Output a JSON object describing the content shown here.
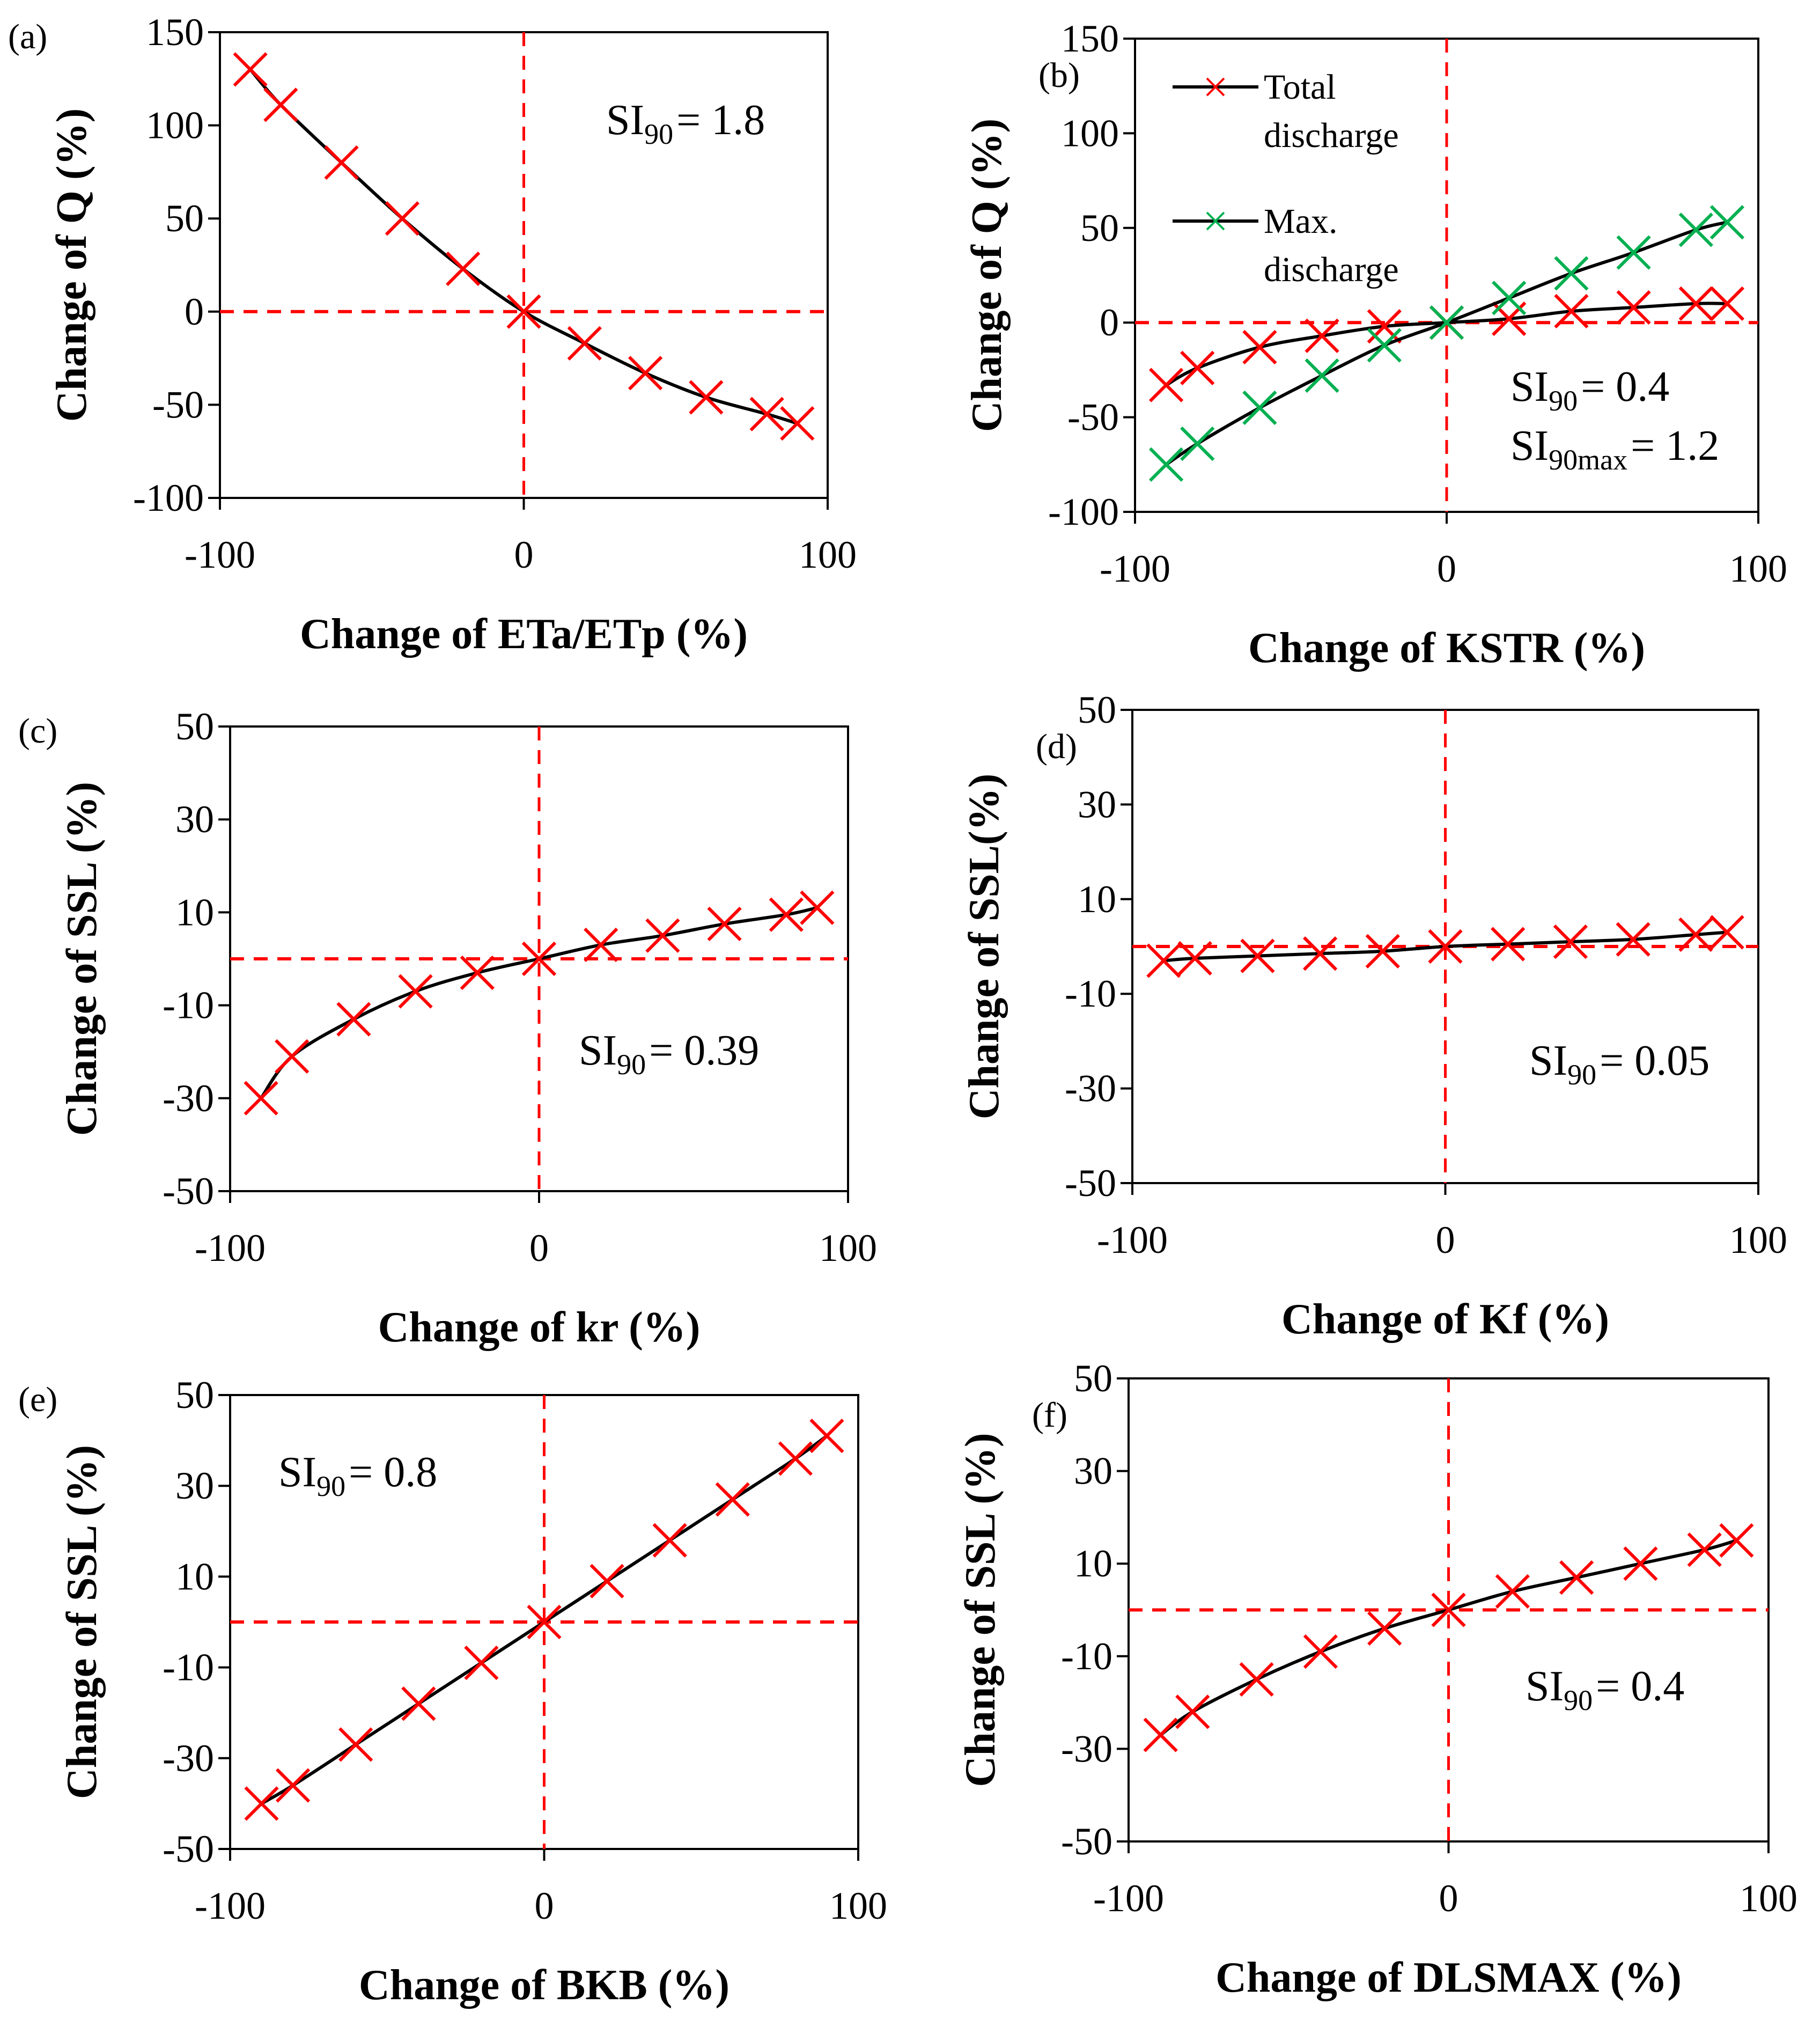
{
  "chart_data": [
    {
      "type": "line",
      "panel_label": "(a)",
      "xlabel": "Change of ETa/ETp (%)",
      "ylabel": "Change of Q (%)",
      "xlim": [
        -100,
        100
      ],
      "ylim": [
        -100,
        150
      ],
      "xticks": [
        -100,
        0,
        100
      ],
      "yticks": [
        -100,
        -50,
        0,
        50,
        100,
        150
      ],
      "x": [
        -90,
        -80,
        -60,
        -40,
        -20,
        0,
        20,
        40,
        60,
        80,
        90
      ],
      "series": [
        {
          "name": "Q",
          "color": "#ff0000",
          "values": [
            130,
            111,
            80,
            50,
            23,
            0,
            -17,
            -33,
            -46,
            -55,
            -60
          ]
        }
      ],
      "annotation": {
        "prefix": "SI",
        "sub": "90",
        "value": "= 1.8",
        "pos": "top-right"
      },
      "legend": null
    },
    {
      "type": "line",
      "panel_label": "(b)",
      "xlabel": "Change of KSTR (%)",
      "ylabel": "Change of Q (%)",
      "xlim": [
        -100,
        100
      ],
      "ylim": [
        -100,
        150
      ],
      "xticks": [
        -100,
        0,
        100
      ],
      "yticks": [
        -100,
        -50,
        0,
        50,
        100,
        150
      ],
      "x": [
        -90,
        -80,
        -60,
        -40,
        -20,
        0,
        20,
        40,
        60,
        80,
        90
      ],
      "series": [
        {
          "name": "Total discharge",
          "label_lines": [
            "Total",
            "discharge"
          ],
          "color": "#ff0000",
          "values": [
            -33,
            -24,
            -13,
            -7,
            -2,
            0,
            2,
            6,
            8,
            10,
            10
          ]
        },
        {
          "name": "Max. discharge",
          "label_lines": [
            "Max.",
            "discharge"
          ],
          "color": "#00b050",
          "values": [
            -75,
            -64,
            -45,
            -28,
            -12,
            0,
            13,
            26,
            37,
            49,
            53
          ]
        }
      ],
      "annotation": {
        "prefix": "SI",
        "sub": "90",
        "value": "= 0.4",
        "pos": "bottom-right"
      },
      "annotation2": {
        "prefix": "SI",
        "sub": "90max",
        "value": "= 1.2",
        "pos": "bottom-right"
      },
      "legend": "top-left"
    },
    {
      "type": "line",
      "panel_label": "(c)",
      "xlabel": "Change of kr (%)",
      "ylabel": "Change of SSL (%)",
      "xlim": [
        -100,
        100
      ],
      "ylim": [
        -50,
        50
      ],
      "xticks": [
        -100,
        0,
        100
      ],
      "yticks": [
        -50,
        -30,
        -10,
        10,
        30,
        50
      ],
      "x": [
        -90,
        -80,
        -60,
        -40,
        -20,
        0,
        20,
        40,
        60,
        80,
        90
      ],
      "series": [
        {
          "name": "SSL",
          "color": "#ff0000",
          "values": [
            -30,
            -21,
            -13,
            -7,
            -3,
            0,
            3,
            5,
            7.5,
            9.5,
            11
          ]
        }
      ],
      "annotation": {
        "prefix": "SI",
        "sub": "90",
        "value": "= 0.39",
        "pos": "middle-right"
      },
      "legend": null
    },
    {
      "type": "line",
      "panel_label": "(d)",
      "xlabel": "Change of Kf  (%)",
      "ylabel": "Change of SSL(%)",
      "xlim": [
        -100,
        100
      ],
      "ylim": [
        -50,
        50
      ],
      "xticks": [
        -100,
        0,
        100
      ],
      "yticks": [
        -50,
        -30,
        -10,
        10,
        30,
        50
      ],
      "x": [
        -90,
        -80,
        -60,
        -40,
        -20,
        0,
        20,
        40,
        60,
        80,
        90
      ],
      "series": [
        {
          "name": "SSL",
          "color": "#ff0000",
          "values": [
            -3,
            -2.5,
            -2,
            -1.5,
            -1,
            0,
            0.5,
            1,
            1.5,
            2.5,
            3
          ]
        }
      ],
      "annotation": {
        "prefix": "SI",
        "sub": "90",
        "value": "= 0.05",
        "pos": "middle-right"
      },
      "legend": null
    },
    {
      "type": "line",
      "panel_label": "(e)",
      "xlabel": "Change of BKB (%)",
      "ylabel": "Change of SSL (%)",
      "xlim": [
        -100,
        100
      ],
      "ylim": [
        -50,
        50
      ],
      "xticks": [
        -100,
        0,
        100
      ],
      "yticks": [
        -50,
        -30,
        -10,
        10,
        30,
        50
      ],
      "x": [
        -90,
        -80,
        -60,
        -40,
        -20,
        0,
        20,
        40,
        60,
        80,
        90
      ],
      "series": [
        {
          "name": "SSL",
          "color": "#ff0000",
          "values": [
            -40,
            -36,
            -27,
            -18,
            -9,
            0,
            9,
            18,
            27,
            36,
            41
          ]
        }
      ],
      "annotation": {
        "prefix": "SI",
        "sub": "90",
        "value": "= 0.8",
        "pos": "top-left"
      },
      "legend": null
    },
    {
      "type": "line",
      "panel_label": "(f)",
      "xlabel": "Change of DLSMAX (%)",
      "ylabel": "Change of SSL (%)",
      "xlim": [
        -100,
        100
      ],
      "ylim": [
        -50,
        50
      ],
      "xticks": [
        -100,
        0,
        100
      ],
      "yticks": [
        -50,
        -30,
        -10,
        10,
        30,
        50
      ],
      "x": [
        -90,
        -80,
        -60,
        -40,
        -20,
        0,
        20,
        40,
        60,
        80,
        90
      ],
      "series": [
        {
          "name": "SSL",
          "color": "#ff0000",
          "values": [
            -27,
            -22,
            -15,
            -9,
            -4,
            0,
            4,
            7,
            10,
            13,
            15
          ]
        }
      ],
      "annotation": {
        "prefix": "SI",
        "sub": "90",
        "value": "= 0.4",
        "pos": "middle-right"
      },
      "legend": null
    }
  ]
}
